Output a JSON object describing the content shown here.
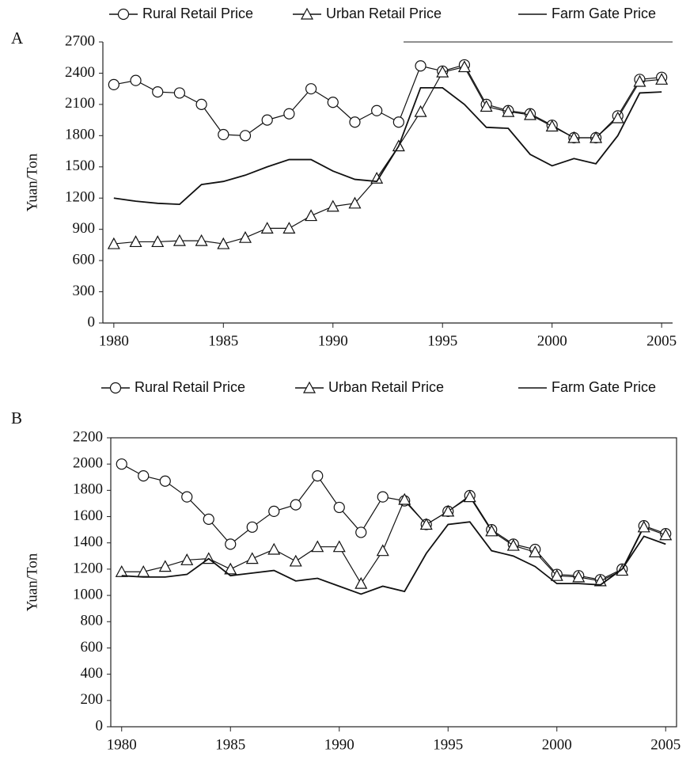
{
  "chart_data": [
    {
      "type": "line",
      "panel_label": "A",
      "y_label": "Yuan/Ton",
      "x": [
        1980,
        1981,
        1982,
        1983,
        1984,
        1985,
        1986,
        1987,
        1988,
        1989,
        1990,
        1991,
        1992,
        1993,
        1994,
        1995,
        1996,
        1997,
        1998,
        1999,
        2000,
        2001,
        2002,
        2003,
        2004,
        2005
      ],
      "series": [
        {
          "name": "Rural Retail Price",
          "color": "#111111",
          "marker": "circle",
          "values": [
            2290,
            2330,
            2220,
            2210,
            2100,
            1810,
            1800,
            1950,
            2010,
            2250,
            2120,
            1930,
            2040,
            1930,
            2470,
            2420,
            2480,
            2100,
            2040,
            2010,
            1900,
            1780,
            1780,
            1990,
            2340,
            2360
          ]
        },
        {
          "name": "Urban Retail Price",
          "color": "#111111",
          "marker": "triangle",
          "values": [
            760,
            780,
            780,
            790,
            790,
            760,
            820,
            910,
            910,
            1030,
            1120,
            1150,
            1390,
            1700,
            2030,
            2410,
            2460,
            2080,
            2030,
            2000,
            1890,
            1780,
            1780,
            1970,
            2320,
            2340
          ]
        },
        {
          "name": "Farm Gate Price",
          "color": "#111111",
          "marker": "none",
          "values": [
            1200,
            1170,
            1150,
            1140,
            1330,
            1360,
            1420,
            1500,
            1570,
            1570,
            1460,
            1380,
            1360,
            1700,
            2260,
            2260,
            2100,
            1880,
            1870,
            1620,
            1510,
            1580,
            1530,
            1800,
            2210,
            2220
          ]
        }
      ],
      "xlim": [
        1979.5,
        2005.5
      ],
      "xticks": [
        1980,
        1985,
        1990,
        1995,
        2000,
        2005
      ],
      "ylim": [
        0,
        2700
      ],
      "yticks": [
        0,
        300,
        600,
        900,
        1200,
        1500,
        1800,
        2100,
        2400,
        2700
      ],
      "frame": false
    },
    {
      "type": "line",
      "panel_label": "B",
      "y_label": "Yuan/Ton",
      "x": [
        1980,
        1981,
        1982,
        1983,
        1984,
        1985,
        1986,
        1987,
        1988,
        1989,
        1990,
        1991,
        1992,
        1993,
        1994,
        1995,
        1996,
        1997,
        1998,
        1999,
        2000,
        2001,
        2002,
        2003,
        2004,
        2005
      ],
      "series": [
        {
          "name": "Rural Retail Price",
          "color": "#111111",
          "marker": "circle",
          "values": [
            2000,
            1910,
            1870,
            1750,
            1580,
            1390,
            1520,
            1640,
            1690,
            1910,
            1670,
            1480,
            1750,
            1720,
            1540,
            1640,
            1760,
            1500,
            1390,
            1350,
            1160,
            1150,
            1120,
            1200,
            1530,
            1470
          ]
        },
        {
          "name": "Urban Retail Price",
          "color": "#111111",
          "marker": "triangle",
          "values": [
            1180,
            1180,
            1220,
            1270,
            1280,
            1200,
            1280,
            1350,
            1260,
            1370,
            1370,
            1090,
            1340,
            1730,
            1540,
            1640,
            1750,
            1490,
            1380,
            1330,
            1150,
            1140,
            1110,
            1190,
            1520,
            1460
          ]
        },
        {
          "name": "Farm Gate Price",
          "color": "#111111",
          "marker": "none",
          "values": [
            1150,
            1140,
            1140,
            1160,
            1280,
            1150,
            1170,
            1190,
            1110,
            1130,
            1070,
            1010,
            1070,
            1030,
            1320,
            1540,
            1560,
            1340,
            1300,
            1220,
            1090,
            1090,
            1080,
            1200,
            1450,
            1390
          ]
        }
      ],
      "xlim": [
        1979.5,
        2005.5
      ],
      "xticks": [
        1980,
        1985,
        1990,
        1995,
        2000,
        2005
      ],
      "ylim": [
        0,
        2200
      ],
      "yticks": [
        0,
        200,
        400,
        600,
        800,
        1000,
        1200,
        1400,
        1600,
        1800,
        2000,
        2200
      ],
      "frame": true
    }
  ]
}
